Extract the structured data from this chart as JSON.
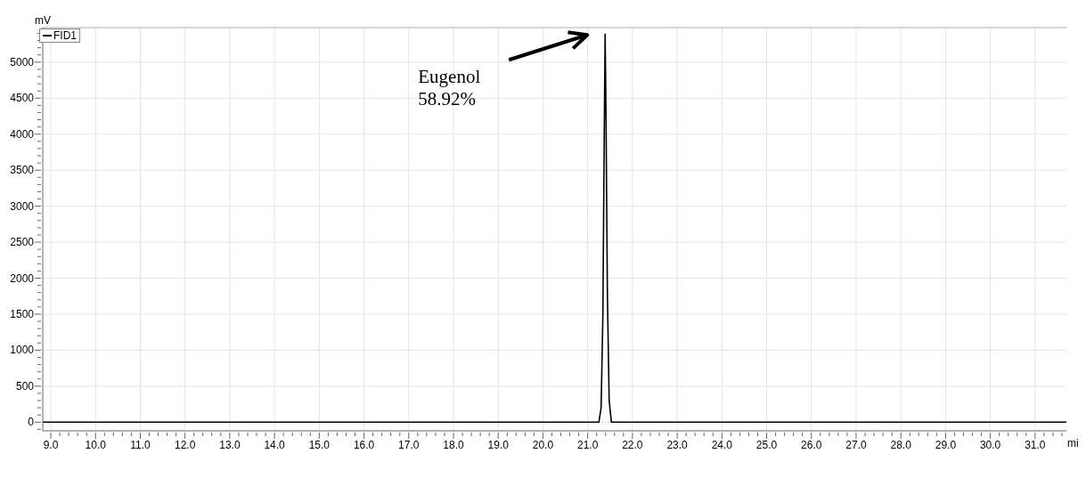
{
  "chart_data": {
    "type": "line",
    "ylabel": "mV",
    "xlabel": "mi",
    "legend": "top left",
    "grid": true,
    "marker": "none",
    "line_style": "solid",
    "annotations": [
      "Eugenol\n58.92%"
    ],
    "series": [
      {
        "name": "FID1",
        "color": "#000000",
        "x": [
          8.82,
          9.0,
          12.0,
          15.0,
          18.0,
          21.25,
          21.3,
          21.34,
          21.37,
          21.39,
          21.41,
          21.44,
          21.48,
          21.53,
          24.0,
          27.0,
          31.7
        ],
        "values": [
          0,
          0,
          0,
          0,
          0,
          0,
          200,
          1500,
          4000,
          5390,
          4200,
          1800,
          300,
          0,
          0,
          0,
          0
        ]
      }
    ],
    "xlim": [
      8.82,
      31.7
    ],
    "ylim": [
      -120,
      5480
    ],
    "xticks": [
      {
        "value": 9,
        "label": "9.0"
      },
      {
        "value": 9.2,
        "label": null
      },
      {
        "value": 9.4,
        "label": null
      },
      {
        "value": 9.6,
        "label": null
      },
      {
        "value": 9.8,
        "label": null
      },
      {
        "value": 10,
        "label": "10.0"
      },
      {
        "value": 10.2,
        "label": null
      },
      {
        "value": 10.4,
        "label": null
      },
      {
        "value": 10.6,
        "label": null
      },
      {
        "value": 10.8,
        "label": null
      },
      {
        "value": 11,
        "label": "11.0"
      },
      {
        "value": 11.2,
        "label": null
      },
      {
        "value": 11.4,
        "label": null
      },
      {
        "value": 11.6,
        "label": null
      },
      {
        "value": 11.8,
        "label": null
      },
      {
        "value": 12,
        "label": "12.0"
      },
      {
        "value": 12.2,
        "label": null
      },
      {
        "value": 12.4,
        "label": null
      },
      {
        "value": 12.6,
        "label": null
      },
      {
        "value": 12.8,
        "label": null
      },
      {
        "value": 13,
        "label": "13.0"
      },
      {
        "value": 13.2,
        "label": null
      },
      {
        "value": 13.4,
        "label": null
      },
      {
        "value": 13.6,
        "label": null
      },
      {
        "value": 13.8,
        "label": null
      },
      {
        "value": 14,
        "label": "14.0"
      },
      {
        "value": 14.2,
        "label": null
      },
      {
        "value": 14.4,
        "label": null
      },
      {
        "value": 14.6,
        "label": null
      },
      {
        "value": 14.8,
        "label": null
      },
      {
        "value": 15,
        "label": "15.0"
      },
      {
        "value": 15.2,
        "label": null
      },
      {
        "value": 15.4,
        "label": null
      },
      {
        "value": 15.6,
        "label": null
      },
      {
        "value": 15.8,
        "label": null
      },
      {
        "value": 16,
        "label": "16.0"
      },
      {
        "value": 16.2,
        "label": null
      },
      {
        "value": 16.4,
        "label": null
      },
      {
        "value": 16.6,
        "label": null
      },
      {
        "value": 16.8,
        "label": null
      },
      {
        "value": 17,
        "label": "17.0"
      },
      {
        "value": 17.2,
        "label": null
      },
      {
        "value": 17.4,
        "label": null
      },
      {
        "value": 17.6,
        "label": null
      },
      {
        "value": 17.8,
        "label": null
      },
      {
        "value": 18,
        "label": "18.0"
      },
      {
        "value": 18.2,
        "label": null
      },
      {
        "value": 18.4,
        "label": null
      },
      {
        "value": 18.6,
        "label": null
      },
      {
        "value": 18.8,
        "label": null
      },
      {
        "value": 19,
        "label": "19.0"
      },
      {
        "value": 19.2,
        "label": null
      },
      {
        "value": 19.4,
        "label": null
      },
      {
        "value": 19.6,
        "label": null
      },
      {
        "value": 19.8,
        "label": null
      },
      {
        "value": 20,
        "label": "20.0"
      },
      {
        "value": 20.2,
        "label": null
      },
      {
        "value": 20.4,
        "label": null
      },
      {
        "value": 20.6,
        "label": null
      },
      {
        "value": 20.8,
        "label": null
      },
      {
        "value": 21,
        "label": "21.0"
      },
      {
        "value": 21.2,
        "label": null
      },
      {
        "value": 21.4,
        "label": null
      },
      {
        "value": 21.6,
        "label": null
      },
      {
        "value": 21.8,
        "label": null
      },
      {
        "value": 22,
        "label": "22.0"
      },
      {
        "value": 22.2,
        "label": null
      },
      {
        "value": 22.4,
        "label": null
      },
      {
        "value": 22.6,
        "label": null
      },
      {
        "value": 22.8,
        "label": null
      },
      {
        "value": 23,
        "label": "23.0"
      },
      {
        "value": 23.2,
        "label": null
      },
      {
        "value": 23.4,
        "label": null
      },
      {
        "value": 23.6,
        "label": null
      },
      {
        "value": 23.8,
        "label": null
      },
      {
        "value": 24,
        "label": "24.0"
      },
      {
        "value": 24.2,
        "label": null
      },
      {
        "value": 24.4,
        "label": null
      },
      {
        "value": 24.6,
        "label": null
      },
      {
        "value": 24.8,
        "label": null
      },
      {
        "value": 25,
        "label": "25.0"
      },
      {
        "value": 25.2,
        "label": null
      },
      {
        "value": 25.4,
        "label": null
      },
      {
        "value": 25.6,
        "label": null
      },
      {
        "value": 25.8,
        "label": null
      },
      {
        "value": 26,
        "label": "26.0"
      },
      {
        "value": 26.2,
        "label": null
      },
      {
        "value": 26.4,
        "label": null
      },
      {
        "value": 26.6,
        "label": null
      },
      {
        "value": 26.8,
        "label": null
      },
      {
        "value": 27,
        "label": "27.0"
      },
      {
        "value": 27.2,
        "label": null
      },
      {
        "value": 27.4,
        "label": null
      },
      {
        "value": 27.6,
        "label": null
      },
      {
        "value": 27.8,
        "label": null
      },
      {
        "value": 28,
        "label": "28.0"
      },
      {
        "value": 28.2,
        "label": null
      },
      {
        "value": 28.4,
        "label": null
      },
      {
        "value": 28.6,
        "label": null
      },
      {
        "value": 28.8,
        "label": null
      },
      {
        "value": 29,
        "label": "29.0"
      },
      {
        "value": 29.2,
        "label": null
      },
      {
        "value": 29.4,
        "label": null
      },
      {
        "value": 29.6,
        "label": null
      },
      {
        "value": 29.8,
        "label": null
      },
      {
        "value": 30,
        "label": "30.0"
      },
      {
        "value": 30.2,
        "label": null
      },
      {
        "value": 30.4,
        "label": null
      },
      {
        "value": 30.6,
        "label": null
      },
      {
        "value": 30.8,
        "label": null
      },
      {
        "value": 31,
        "label": "31.0"
      },
      {
        "value": 31.2,
        "label": null
      },
      {
        "value": 31.4,
        "label": null
      },
      {
        "value": 31.6,
        "label": null
      }
    ],
    "yticks": [
      {
        "value": -100,
        "label": null
      },
      0,
      {
        "value": 100,
        "label": null
      },
      {
        "value": 200,
        "label": null
      },
      {
        "value": 300,
        "label": null
      },
      {
        "value": 400,
        "label": null
      },
      500,
      {
        "value": 600,
        "label": null
      },
      {
        "value": 700,
        "label": null
      },
      {
        "value": 800,
        "label": null
      },
      {
        "value": 900,
        "label": null
      },
      1000,
      {
        "value": 1100,
        "label": null
      },
      {
        "value": 1200,
        "label": null
      },
      {
        "value": 1300,
        "label": null
      },
      {
        "value": 1400,
        "label": null
      },
      1500,
      {
        "value": 1600,
        "label": null
      },
      {
        "value": 1700,
        "label": null
      },
      {
        "value": 1800,
        "label": null
      },
      {
        "value": 1900,
        "label": null
      },
      2000,
      {
        "value": 2100,
        "label": null
      },
      {
        "value": 2200,
        "label": null
      },
      {
        "value": 2300,
        "label": null
      },
      {
        "value": 2400,
        "label": null
      },
      2500,
      {
        "value": 2600,
        "label": null
      },
      {
        "value": 2700,
        "label": null
      },
      {
        "value": 2800,
        "label": null
      },
      {
        "value": 2900,
        "label": null
      },
      3000,
      {
        "value": 3100,
        "label": null
      },
      {
        "value": 3200,
        "label": null
      },
      {
        "value": 3300,
        "label": null
      },
      {
        "value": 3400,
        "label": null
      },
      3500,
      {
        "value": 3600,
        "label": null
      },
      {
        "value": 3700,
        "label": null
      },
      {
        "value": 3800,
        "label": null
      },
      {
        "value": 3900,
        "label": null
      },
      4000,
      {
        "value": 4100,
        "label": null
      },
      {
        "value": 4200,
        "label": null
      },
      {
        "value": 4300,
        "label": null
      },
      {
        "value": 4400,
        "label": null
      },
      4500,
      {
        "value": 4600,
        "label": null
      },
      {
        "value": 4700,
        "label": null
      },
      {
        "value": 4800,
        "label": null
      },
      {
        "value": 4900,
        "label": null
      },
      5000,
      {
        "value": 5100,
        "label": null
      },
      {
        "value": 5200,
        "label": null
      },
      {
        "value": 5300,
        "label": null
      },
      {
        "value": 5400,
        "label": null
      }
    ]
  }
}
